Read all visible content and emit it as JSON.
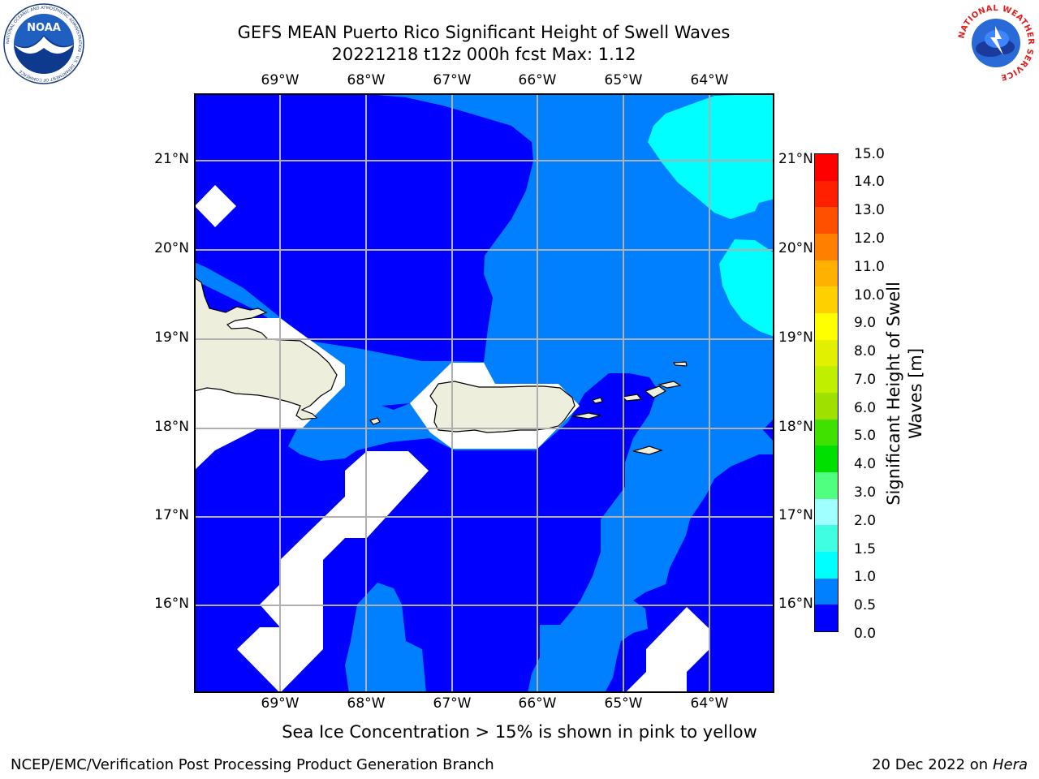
{
  "title": {
    "line1": "GEFS MEAN Puerto Rico Significant Height of Swell Waves",
    "line2": "20221218 t12z 000h fcst   Max: 1.12"
  },
  "map": {
    "lon_ticks_top": [
      "69°W",
      "68°W",
      "67°W",
      "66°W",
      "65°W",
      "64°W"
    ],
    "lon_ticks_bottom": [
      "69°W",
      "68°W",
      "67°W",
      "66°W",
      "65°W",
      "64°W"
    ],
    "lat_ticks_left": [
      "21°N",
      "20°N",
      "19°N",
      "18°N",
      "17°N",
      "16°N"
    ],
    "lat_ticks_right": [
      "21°N",
      "20°N",
      "19°N",
      "18°N",
      "17°N",
      "16°N"
    ],
    "colors": {
      "land": "#eeeedd",
      "no_data": "#ffffff",
      "grid": "#b0b0b0",
      "level_0_0.5": "#0000ff",
      "level_0.5_1.0": "#0080ff",
      "level_1.0_1.5": "#00ffff"
    }
  },
  "colorbar": {
    "tick_labels": [
      "15.0",
      "14.0",
      "13.0",
      "12.0",
      "11.0",
      "10.0",
      "9.0",
      "8.0",
      "7.0",
      "6.0",
      "5.0",
      "4.0",
      "3.0",
      "2.0",
      "1.5",
      "1.0",
      "0.5",
      "0.0"
    ],
    "label_line1": "Significant Height of Swell",
    "label_line2": "Waves [m]",
    "colors_bottom_to_top": [
      "#0000ff",
      "#0080ff",
      "#00ffff",
      "#40ffe0",
      "#a0ffff",
      "#50ff80",
      "#00e000",
      "#40e000",
      "#a0e000",
      "#c0f000",
      "#e0f000",
      "#ffff00",
      "#ffd000",
      "#ffb000",
      "#ff8000",
      "#ff5000",
      "#ff2000",
      "#ff0000"
    ]
  },
  "ice_note": "Sea Ice Concentration > 15% is shown in pink to yellow",
  "footer": {
    "left": "NCEP/EMC/Verification Post Processing Product Generation Branch",
    "right_date": "20 Dec 2022 on",
    "right_host": "Hera"
  },
  "logos": {
    "noaa_text": "NOAA",
    "noaa_ring_text": "NATIONAL OCEANIC AND ATMOSPHERIC ADMINISTRATION · U.S. DEPARTMENT OF COMMERCE",
    "nws_ring_text": "NATIONAL WEATHER SERVICE"
  }
}
